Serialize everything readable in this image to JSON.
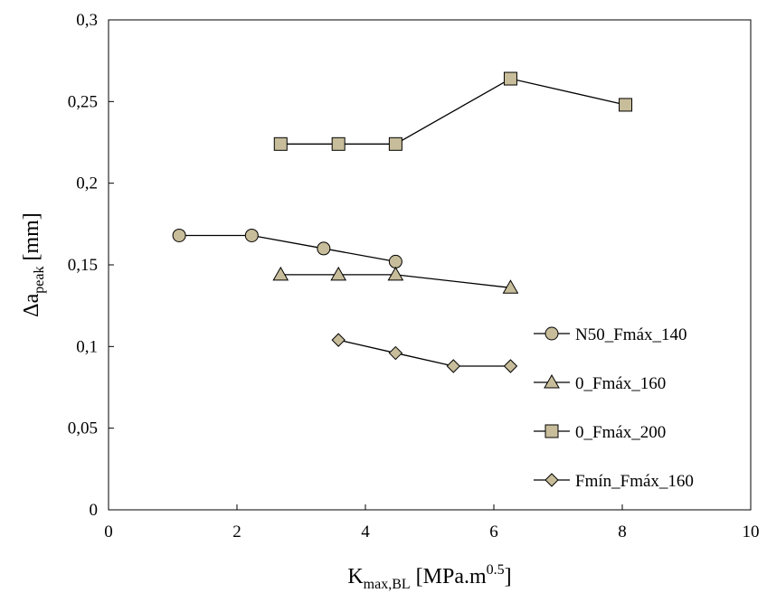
{
  "chart_data": {
    "type": "line",
    "xlim": [
      0,
      10
    ],
    "ylim": [
      0,
      0.3
    ],
    "x_ticks": [
      "0",
      "2",
      "4",
      "6",
      "8",
      "10"
    ],
    "y_ticks": [
      "0",
      "0,05",
      "0,1",
      "0,15",
      "0,2",
      "0,25",
      "0,3"
    ],
    "x_tick_values": [
      0,
      2,
      4,
      6,
      8,
      10
    ],
    "y_tick_values": [
      0,
      0.05,
      0.1,
      0.15,
      0.2,
      0.25,
      0.3
    ],
    "xlabel": {
      "main": "K",
      "sub": "max,BL",
      "rest": " [MPa.m",
      "sup": "0.5",
      "end": "]"
    },
    "ylabel": {
      "main": "Δa",
      "sub": "peak",
      "rest": " [mm]"
    },
    "grid": false,
    "legend_position": "right",
    "marker_fill": "#c8bd9a",
    "marker_stroke": "#000000",
    "line_color": "#000000",
    "series": [
      {
        "name": "N50_Fmáx_140",
        "marker": "circle",
        "x": [
          1.1,
          2.23,
          3.35,
          4.47
        ],
        "y": [
          0.168,
          0.168,
          0.16,
          0.152
        ]
      },
      {
        "name": "0_Fmáx_160",
        "marker": "triangle",
        "x": [
          2.68,
          3.58,
          4.47,
          6.26
        ],
        "y": [
          0.144,
          0.144,
          0.144,
          0.136
        ]
      },
      {
        "name": "0_Fmáx_200",
        "marker": "square",
        "x": [
          2.68,
          3.58,
          4.47,
          6.26,
          8.05
        ],
        "y": [
          0.224,
          0.224,
          0.224,
          0.264,
          0.248
        ]
      },
      {
        "name": "Fmín_Fmáx_160",
        "marker": "diamond",
        "x": [
          3.58,
          4.47,
          5.37,
          6.26
        ],
        "y": [
          0.104,
          0.096,
          0.088,
          0.088
        ]
      }
    ]
  }
}
